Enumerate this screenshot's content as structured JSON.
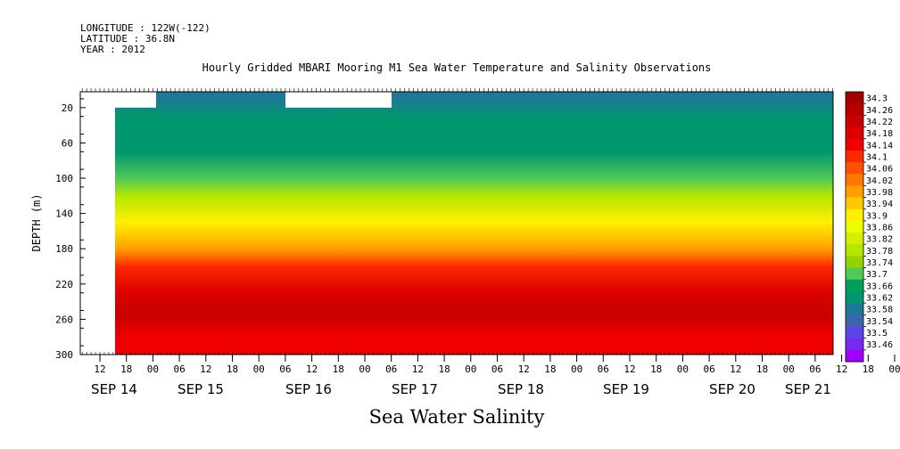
{
  "meta": {
    "longitude": "LONGITUDE : 122W(-122)",
    "latitude": "LATITUDE : 36.8N",
    "year": "YEAR : 2012"
  },
  "chart_data": {
    "type": "heatmap",
    "title": "Hourly Gridded MBARI Mooring M1 Sea Water Temperature and Salinity Observations",
    "xlabel": "Sea Water Salinity",
    "ylabel": "DEPTH (m)",
    "ylim": [
      300,
      2
    ],
    "y_ticks": [
      20,
      60,
      100,
      140,
      180,
      220,
      260,
      300
    ],
    "hour_ticks": [
      "12",
      "18",
      "00",
      "06",
      "12",
      "18",
      "00",
      "06",
      "12",
      "18",
      "00",
      "06",
      "12",
      "18",
      "00",
      "06",
      "12",
      "18",
      "00",
      "06",
      "12",
      "18",
      "00",
      "06",
      "12",
      "18",
      "00",
      "06",
      "12",
      "18",
      "00",
      "06"
    ],
    "date_labels": [
      "SEP 14",
      "SEP 15",
      "SEP 16",
      "SEP 17",
      "SEP 18",
      "SEP 19",
      "SEP 20",
      "SEP 21"
    ],
    "colorbar_levels": [
      "34.3",
      "34.26",
      "34.22",
      "34.18",
      "34.14",
      "34.1",
      "34.06",
      "34.02",
      "33.98",
      "33.94",
      "33.9",
      "33.86",
      "33.82",
      "33.78",
      "33.74",
      "33.7",
      "33.66",
      "33.62",
      "33.58",
      "33.54",
      "33.5",
      "33.46"
    ],
    "colorbar_colors": [
      "#a00000",
      "#b40000",
      "#c80000",
      "#dc0000",
      "#f00000",
      "#ff2800",
      "#ff5000",
      "#ff7800",
      "#ffa000",
      "#ffc800",
      "#fff000",
      "#f0ff00",
      "#d2f000",
      "#b4e600",
      "#96d200",
      "#50c85a",
      "#00a05a",
      "#00966e",
      "#1e7896",
      "#3c64aa",
      "#5a46e6",
      "#7828f0",
      "#a000ff"
    ],
    "salinity_profile": [
      {
        "depth": 10,
        "value": 33.58
      },
      {
        "depth": 30,
        "value": 33.62
      },
      {
        "depth": 70,
        "value": 33.64
      },
      {
        "depth": 100,
        "value": 33.7
      },
      {
        "depth": 120,
        "value": 33.78
      },
      {
        "depth": 150,
        "value": 33.92
      },
      {
        "depth": 180,
        "value": 33.98
      },
      {
        "depth": 200,
        "value": 34.1
      },
      {
        "depth": 230,
        "value": 34.18
      },
      {
        "depth": 255,
        "value": 34.24
      },
      {
        "depth": 280,
        "value": 34.16
      },
      {
        "depth": 300,
        "value": 34.14
      }
    ]
  }
}
